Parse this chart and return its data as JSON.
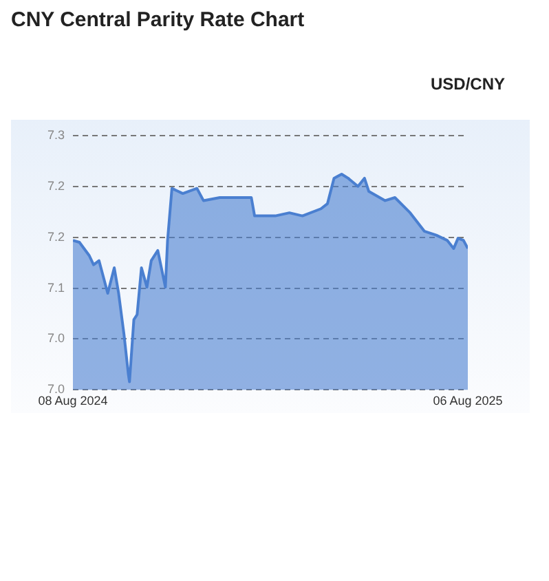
{
  "chart_data": {
    "type": "area",
    "title": "CNY Central Parity Rate Chart",
    "subtitle": "USD/CNY",
    "x": [
      "2024-08-08",
      "2024-08-14",
      "2024-08-23",
      "2024-08-27",
      "2024-09-01",
      "2024-09-09",
      "2024-09-15",
      "2024-09-19",
      "2024-09-24",
      "2024-09-28",
      "2024-09-29",
      "2024-10-03",
      "2024-10-06",
      "2024-10-10",
      "2024-10-15",
      "2024-10-19",
      "2024-10-25",
      "2024-11-01",
      "2024-11-03",
      "2024-11-07",
      "2024-11-17",
      "2024-11-30",
      "2024-12-06",
      "2024-12-21",
      "2025-01-19",
      "2025-01-22",
      "2025-02-10",
      "2025-02-23",
      "2025-03-07",
      "2025-03-24",
      "2025-03-30",
      "2025-04-05",
      "2025-04-12",
      "2025-04-18",
      "2025-04-27",
      "2025-05-03",
      "2025-05-07",
      "2025-05-22",
      "2025-05-31",
      "2025-06-14",
      "2025-06-27",
      "2025-07-08",
      "2025-07-18",
      "2025-07-24",
      "2025-07-28",
      "2025-08-02",
      "2025-08-06"
    ],
    "values": [
      7.147,
      7.145,
      7.132,
      7.123,
      7.127,
      7.095,
      7.12,
      7.095,
      7.054,
      7.015,
      7.008,
      7.069,
      7.074,
      7.12,
      7.101,
      7.127,
      7.137,
      7.101,
      7.147,
      7.198,
      7.193,
      7.198,
      7.186,
      7.189,
      7.189,
      7.171,
      7.171,
      7.174,
      7.171,
      7.178,
      7.183,
      7.208,
      7.212,
      7.208,
      7.2,
      7.208,
      7.195,
      7.186,
      7.189,
      7.174,
      7.156,
      7.152,
      7.147,
      7.139,
      7.149,
      7.147,
      7.139
    ],
    "color": "#4a7fd0",
    "xlim": [
      "2024-08-08",
      "2025-08-06"
    ],
    "xticks": [
      {
        "value": "2024-08-08",
        "label": "08 Aug 2024"
      },
      {
        "value": "2025-08-06",
        "label": "06 Aug 2025"
      }
    ],
    "ylim": [
      7.0,
      7.25
    ],
    "yticks": [
      {
        "value": 7.0,
        "label": "7.0"
      },
      {
        "value": 7.05,
        "label": "7.0"
      },
      {
        "value": 7.1,
        "label": "7.1"
      },
      {
        "value": 7.15,
        "label": "7.2"
      },
      {
        "value": 7.2,
        "label": "7.2"
      },
      {
        "value": 7.25,
        "label": "7.3"
      }
    ],
    "grid": "y",
    "legend": false,
    "marker": "none",
    "line_style": "solid"
  }
}
